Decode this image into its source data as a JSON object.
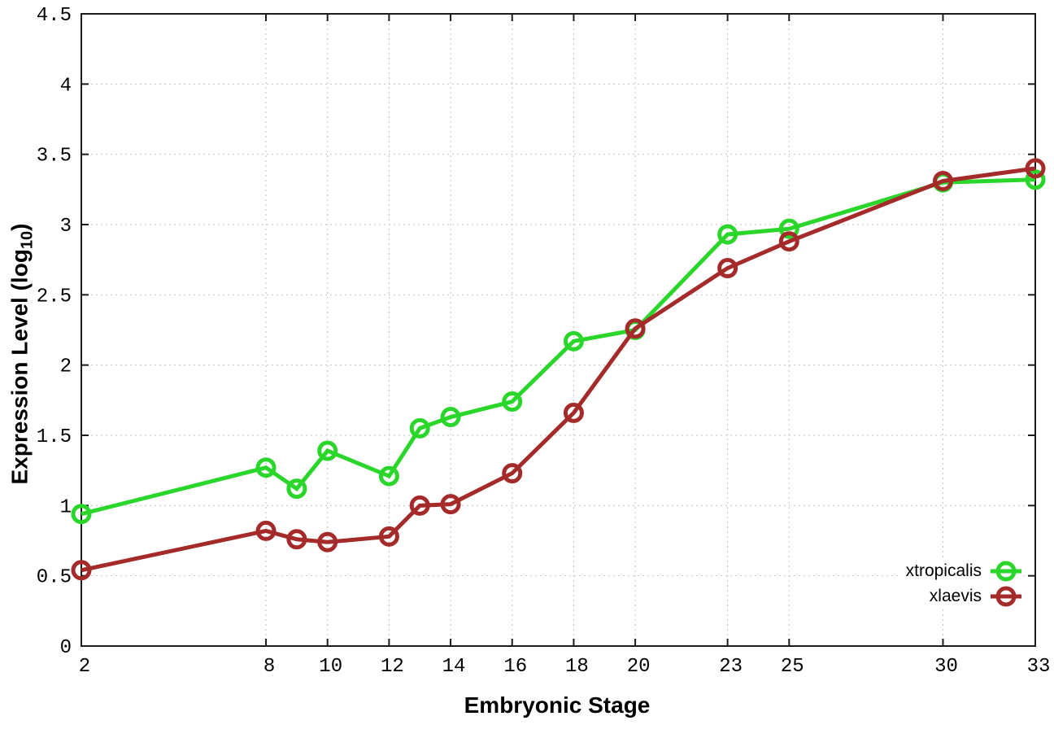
{
  "chart_data": {
    "type": "line",
    "title": "",
    "xlabel": "Embryonic Stage",
    "ylabel": "Expression Level (log10)",
    "ylabel_parts": {
      "prefix": "Expression Level (log",
      "sub": "10",
      "suffix": ")"
    },
    "x": [
      2,
      8,
      9,
      10,
      12,
      13,
      14,
      16,
      18,
      20,
      23,
      25,
      30,
      33
    ],
    "series": [
      {
        "name": "xtropicalis",
        "color": "#2bd62b",
        "values": [
          0.94,
          1.27,
          1.12,
          1.39,
          1.21,
          1.55,
          1.63,
          1.74,
          2.17,
          2.25,
          2.93,
          2.97,
          3.3,
          3.32
        ]
      },
      {
        "name": "xlaevis",
        "color": "#a52a2a",
        "values": [
          0.54,
          0.82,
          0.76,
          0.74,
          0.78,
          1.0,
          1.01,
          1.23,
          1.66,
          2.26,
          2.69,
          2.88,
          3.31,
          3.4
        ]
      }
    ],
    "xlim": [
      2,
      33
    ],
    "ylim": [
      0,
      4.5
    ],
    "x_tick_values": [
      2,
      8,
      10,
      12,
      14,
      16,
      18,
      20,
      23,
      25,
      30,
      33
    ],
    "x_tick_labels": [
      "2",
      "8",
      "10",
      "12",
      "14",
      "16",
      "18",
      "20",
      "23",
      "25",
      "30",
      "33"
    ],
    "y_tick_values": [
      0,
      0.5,
      1,
      1.5,
      2,
      2.5,
      3,
      3.5,
      4,
      4.5
    ],
    "y_tick_labels": [
      "0",
      "0.5",
      "1",
      "1.5",
      "2",
      "2.5",
      "3",
      "3.5",
      "4",
      "4.5"
    ],
    "grid": true,
    "legend_position": "bottom-right",
    "marker": "open-circle"
  },
  "colors": {
    "background": "#ffffff",
    "axis": "#1c1c1c",
    "grid": "#c2c2c2",
    "text": "#000000"
  }
}
